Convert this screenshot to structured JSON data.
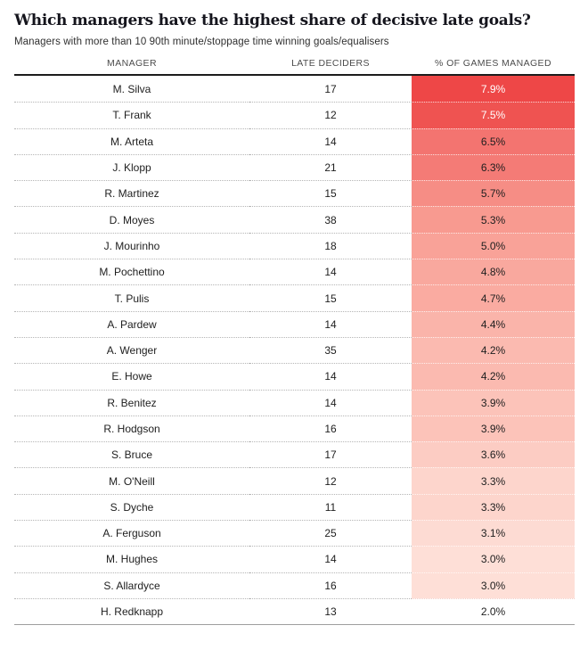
{
  "title": "Which managers have the highest share of decisive late goals?",
  "subtitle": "Managers with more than 10 90th minute/stoppage time winning goals/equalisers",
  "accent_color": "#ee4747",
  "chart_data": {
    "type": "table",
    "title": "Which managers have the highest share of decisive late goals?",
    "subtitle": "Managers with more than 10 90th minute/stoppage time winning goals/equalisers",
    "columns": [
      "MANAGER",
      "LATE DECIDERS",
      "% OF GAMES MANAGED"
    ],
    "color_scale": {
      "min_value": 2.0,
      "max_value": 7.9,
      "min_color": "#ffffff",
      "max_color": "#ee4747"
    },
    "rows": [
      {
        "manager": "M. Silva",
        "late_deciders": "17",
        "pct": "7.9%",
        "cell_color": "#ee4747",
        "text_color": "#ffffff"
      },
      {
        "manager": "T. Frank",
        "late_deciders": "12",
        "pct": "7.5%",
        "cell_color": "#ef5351",
        "text_color": "#ffffff"
      },
      {
        "manager": "M. Arteta",
        "late_deciders": "14",
        "pct": "6.5%",
        "cell_color": "#f37470",
        "text_color": "#1e1e1e"
      },
      {
        "manager": "J. Klopp",
        "late_deciders": "21",
        "pct": "6.3%",
        "cell_color": "#f47b76",
        "text_color": "#1e1e1e"
      },
      {
        "manager": "R. Martinez",
        "late_deciders": "15",
        "pct": "5.7%",
        "cell_color": "#f68d85",
        "text_color": "#1e1e1e"
      },
      {
        "manager": "D. Moyes",
        "late_deciders": "38",
        "pct": "5.3%",
        "cell_color": "#f89a90",
        "text_color": "#1e1e1e"
      },
      {
        "manager": "J. Mourinho",
        "late_deciders": "18",
        "pct": "5.0%",
        "cell_color": "#f9a298",
        "text_color": "#1e1e1e"
      },
      {
        "manager": "M. Pochettino",
        "late_deciders": "14",
        "pct": "4.8%",
        "cell_color": "#f9a89e",
        "text_color": "#1e1e1e"
      },
      {
        "manager": "T. Pulis",
        "late_deciders": "15",
        "pct": "4.7%",
        "cell_color": "#faaba1",
        "text_color": "#1e1e1e"
      },
      {
        "manager": "A. Pardew",
        "late_deciders": "14",
        "pct": "4.4%",
        "cell_color": "#fab4aa",
        "text_color": "#1e1e1e"
      },
      {
        "manager": "A. Wenger",
        "late_deciders": "35",
        "pct": "4.2%",
        "cell_color": "#fbbab0",
        "text_color": "#1e1e1e"
      },
      {
        "manager": "E. Howe",
        "late_deciders": "14",
        "pct": "4.2%",
        "cell_color": "#fbbab0",
        "text_color": "#1e1e1e"
      },
      {
        "manager": "R. Benitez",
        "late_deciders": "14",
        "pct": "3.9%",
        "cell_color": "#fcc3b9",
        "text_color": "#1e1e1e"
      },
      {
        "manager": "R. Hodgson",
        "late_deciders": "16",
        "pct": "3.9%",
        "cell_color": "#fcc3b9",
        "text_color": "#1e1e1e"
      },
      {
        "manager": "S. Bruce",
        "late_deciders": "17",
        "pct": "3.6%",
        "cell_color": "#fcccc3",
        "text_color": "#1e1e1e"
      },
      {
        "manager": "M. O'Neill",
        "late_deciders": "12",
        "pct": "3.3%",
        "cell_color": "#fdd5cc",
        "text_color": "#1e1e1e"
      },
      {
        "manager": "S. Dyche",
        "late_deciders": "11",
        "pct": "3.3%",
        "cell_color": "#fdd5cc",
        "text_color": "#1e1e1e"
      },
      {
        "manager": "A. Ferguson",
        "late_deciders": "25",
        "pct": "3.1%",
        "cell_color": "#fddbd3",
        "text_color": "#1e1e1e"
      },
      {
        "manager": "M. Hughes",
        "late_deciders": "14",
        "pct": "3.0%",
        "cell_color": "#fedfd7",
        "text_color": "#1e1e1e"
      },
      {
        "manager": "S. Allardyce",
        "late_deciders": "16",
        "pct": "3.0%",
        "cell_color": "#fedfd7",
        "text_color": "#1e1e1e"
      },
      {
        "manager": "H. Redknapp",
        "late_deciders": "13",
        "pct": "2.0%",
        "cell_color": "#ffffff",
        "text_color": "#1e1e1e"
      }
    ]
  }
}
